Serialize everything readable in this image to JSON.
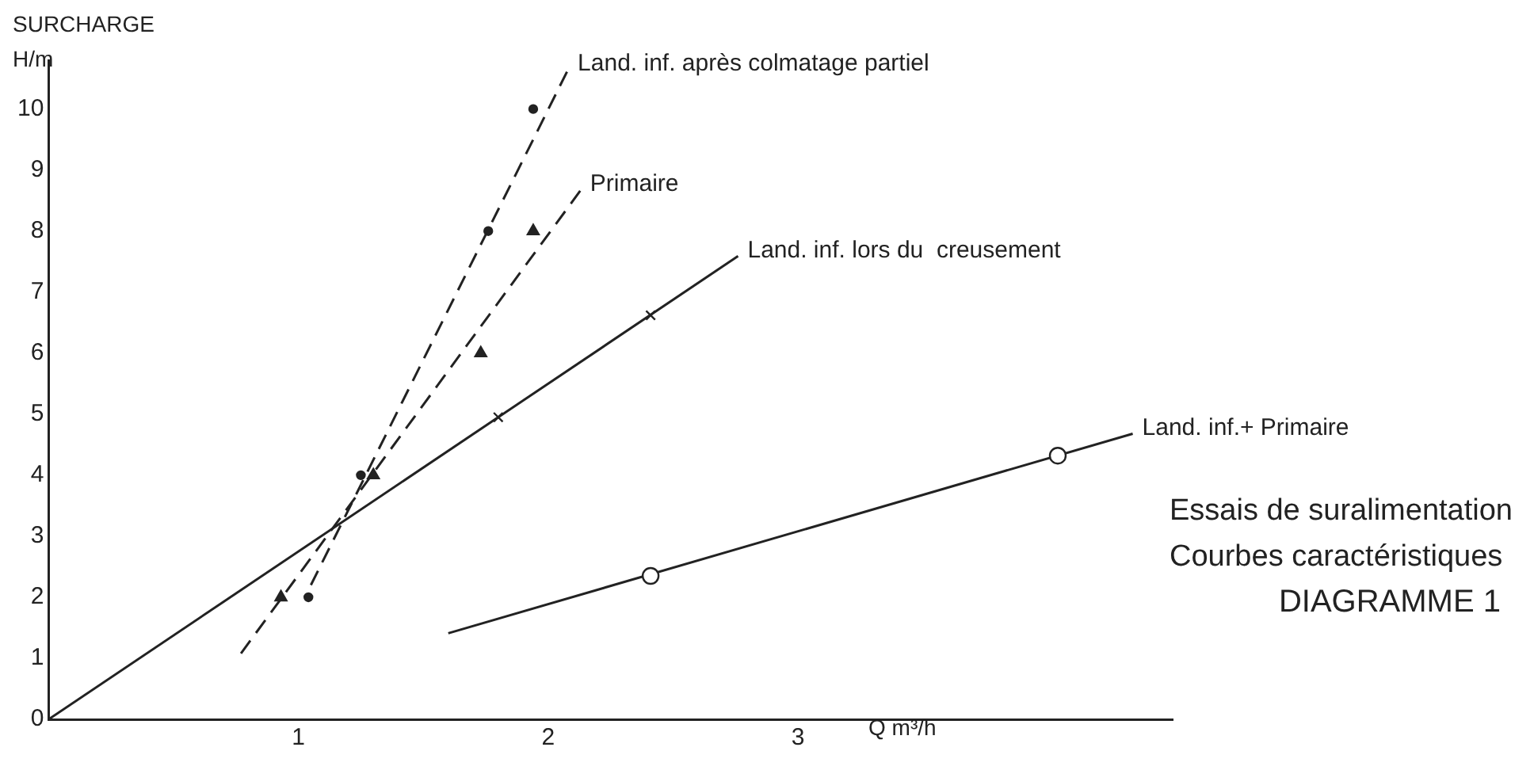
{
  "chart_data": {
    "type": "line",
    "ylabel": "SURCHARGE H/m",
    "xlabel": "Q m³/h",
    "xlim": [
      0,
      4.5
    ],
    "xticks": [
      1,
      2,
      3
    ],
    "ylim": [
      0,
      10.8
    ],
    "yticks": [
      0,
      1,
      2,
      3,
      4,
      5,
      6,
      7,
      8,
      9,
      10
    ],
    "grid": false,
    "legend": false,
    "series": [
      {
        "name": "Land. inf. après colmatage partiel",
        "color": "#222222",
        "line_style": "dashed",
        "marker": "none",
        "x": [
          1.05,
          2.08
        ],
        "values": [
          2.2,
          10.65
        ]
      },
      {
        "type": "scatter",
        "color": "#222222",
        "marker": "circle",
        "x": [
          1.04,
          1.25,
          1.76,
          1.94
        ],
        "values": [
          2,
          4,
          8,
          10
        ]
      },
      {
        "name": "Primaire",
        "color": "#222222",
        "line_style": "dashed",
        "marker": "none",
        "x": [
          0.77,
          2.13
        ],
        "values": [
          1.08,
          8.67
        ]
      },
      {
        "type": "scatter",
        "color": "#222222",
        "marker": "triangle",
        "x": [
          0.93,
          1.3,
          1.73,
          1.94
        ],
        "values": [
          2,
          4,
          6,
          8
        ]
      },
      {
        "name": "Land. inf. lors du  creusement",
        "color": "#222222",
        "line_style": "solid",
        "marker": "none",
        "x": [
          0,
          2.76
        ],
        "values": [
          0,
          7.59
        ]
      },
      {
        "type": "scatter",
        "color": "#222222",
        "marker": "cross",
        "x": [
          1.8,
          2.41
        ],
        "values": [
          4.95,
          6.62
        ]
      },
      {
        "name": "Land. inf.+ Primaire",
        "color": "#222222",
        "line_style": "solid",
        "marker": "none",
        "x": [
          1.6,
          4.34
        ],
        "values": [
          1.41,
          4.68
        ]
      },
      {
        "type": "scatter",
        "color": "#222222",
        "marker": "circle",
        "x": [
          2.41,
          4.04
        ],
        "values": [
          2.35,
          4.32
        ]
      }
    ],
    "annotations": [
      "Essais de suralimentation",
      "Courbes caractéristiques",
      "DIAGRAMME 1"
    ]
  }
}
